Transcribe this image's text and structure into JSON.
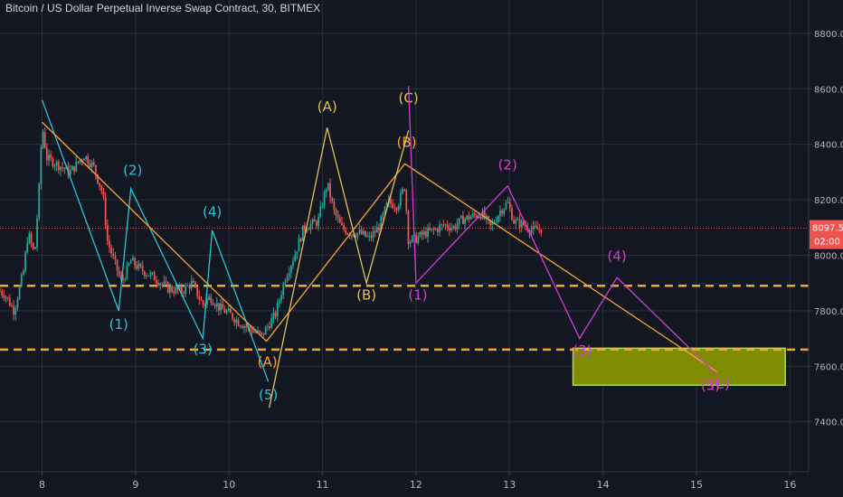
{
  "title": "Bitcoin / US Dollar Perpetual Inverse Swap Contract, 30, BITMEX",
  "colors": {
    "background": "#131722",
    "grid": "#2a2e39",
    "axis_text": "#b2b5be",
    "candle_up": "#26a69a",
    "candle_down": "#ef5350",
    "price_line": "#ef5350",
    "support": "#f5a623",
    "cyan_wave": "#26c6da",
    "orange_wave": "#f7a531",
    "yellow_label": "#e2c15a",
    "magenta_wave": "#d63bd6",
    "target_fill": "#7f8c00",
    "target_border": "#a6e34a"
  },
  "chart_data": {
    "type": "candlestick",
    "x_axis": {
      "ticks": [
        "8",
        "9",
        "10",
        "11",
        "12",
        "13",
        "14",
        "15",
        "16"
      ],
      "range": [
        7.55,
        16.2
      ]
    },
    "y_axis": {
      "ticks": [
        "7400.0",
        "7600.0",
        "7800.0",
        "8000.0",
        "8200.0",
        "8400.0",
        "8600.0",
        "8800.0"
      ],
      "tick_values": [
        7400,
        7600,
        7800,
        8000,
        8200,
        8400,
        8600,
        8800
      ],
      "range": [
        7220,
        8920
      ],
      "position": "right"
    },
    "grid": true,
    "current_price": {
      "value": 8097.5,
      "label": "8097.5",
      "countdown": "02:00"
    },
    "support_levels": [
      7890,
      7660
    ],
    "target_zone": {
      "x": [
        13.68,
        15.95
      ],
      "y": [
        7532,
        7665
      ]
    },
    "price_path": [
      [
        7.55,
        7870
      ],
      [
        7.6,
        7860
      ],
      [
        7.7,
        7800
      ],
      [
        7.8,
        7940
      ],
      [
        7.85,
        8080
      ],
      [
        7.92,
        8000
      ],
      [
        7.97,
        8250
      ],
      [
        8.0,
        8470
      ],
      [
        8.05,
        8350
      ],
      [
        8.15,
        8330
      ],
      [
        8.3,
        8300
      ],
      [
        8.45,
        8360
      ],
      [
        8.55,
        8320
      ],
      [
        8.65,
        8220
      ],
      [
        8.7,
        8050
      ],
      [
        8.85,
        7900
      ],
      [
        8.95,
        7980
      ],
      [
        9.05,
        7950
      ],
      [
        9.2,
        7920
      ],
      [
        9.35,
        7880
      ],
      [
        9.5,
        7870
      ],
      [
        9.6,
        7900
      ],
      [
        9.72,
        7820
      ],
      [
        9.8,
        7850
      ],
      [
        9.9,
        7810
      ],
      [
        10.0,
        7790
      ],
      [
        10.1,
        7760
      ],
      [
        10.2,
        7740
      ],
      [
        10.35,
        7710
      ],
      [
        10.5,
        7790
      ],
      [
        10.6,
        7920
      ],
      [
        10.7,
        8000
      ],
      [
        10.8,
        8100
      ],
      [
        10.95,
        8120
      ],
      [
        11.05,
        8260
      ],
      [
        11.12,
        8160
      ],
      [
        11.2,
        8100
      ],
      [
        11.3,
        8080
      ],
      [
        11.4,
        8080
      ],
      [
        11.5,
        8060
      ],
      [
        11.6,
        8100
      ],
      [
        11.7,
        8190
      ],
      [
        11.8,
        8180
      ],
      [
        11.88,
        8250
      ],
      [
        11.92,
        8050
      ],
      [
        12.0,
        8060
      ],
      [
        12.1,
        8080
      ],
      [
        12.2,
        8090
      ],
      [
        12.3,
        8110
      ],
      [
        12.4,
        8100
      ],
      [
        12.5,
        8130
      ],
      [
        12.6,
        8140
      ],
      [
        12.7,
        8150
      ],
      [
        12.8,
        8100
      ],
      [
        12.9,
        8160
      ],
      [
        12.98,
        8190
      ],
      [
        13.05,
        8120
      ],
      [
        13.15,
        8110
      ],
      [
        13.25,
        8090
      ],
      [
        13.35,
        8097
      ]
    ],
    "waves": [
      {
        "color_key": "cyan_wave",
        "points": [
          [
            8.0,
            8560
          ],
          [
            8.82,
            7800
          ],
          [
            8.95,
            8240
          ],
          [
            9.72,
            7700
          ],
          [
            9.82,
            8090
          ],
          [
            10.42,
            7545
          ]
        ],
        "labels": [
          {
            "text": "(1)",
            "x": 8.82,
            "y": 7735
          },
          {
            "text": "(2)",
            "x": 8.97,
            "y": 8290
          },
          {
            "text": "(3)",
            "x": 9.72,
            "y": 7645
          },
          {
            "text": "(4)",
            "x": 9.82,
            "y": 8140
          },
          {
            "text": "(5)",
            "x": 10.42,
            "y": 7480
          }
        ]
      },
      {
        "color_key": "orange_wave",
        "points": [
          [
            8.0,
            8480
          ],
          [
            10.4,
            7690
          ]
        ],
        "labels": []
      },
      {
        "color_key": "orange_wave",
        "points": [
          [
            10.4,
            7690
          ],
          [
            11.88,
            8330
          ],
          [
            15.22,
            7580
          ]
        ],
        "labels": [
          {
            "text": "(A)",
            "x": 10.41,
            "y": 7600
          },
          {
            "text": "(B)",
            "x": 11.9,
            "y": 8390
          }
        ]
      },
      {
        "color_key": "yellow_label",
        "points": [
          [
            10.43,
            7450
          ],
          [
            11.05,
            8460
          ],
          [
            11.47,
            7900
          ],
          [
            11.92,
            8450
          ]
        ],
        "labels": [
          {
            "text": "(A)",
            "x": 11.05,
            "y": 8520
          },
          {
            "text": "(B)",
            "x": 11.47,
            "y": 7840
          },
          {
            "text": "(C)",
            "x": 11.92,
            "y": 8550
          }
        ]
      },
      {
        "color_key": "magenta_wave",
        "points": [
          [
            11.92,
            8610
          ],
          [
            12.0,
            7900
          ],
          [
            12.98,
            8250
          ],
          [
            13.75,
            7700
          ],
          [
            14.15,
            7920
          ],
          [
            15.2,
            7575
          ]
        ],
        "labels": [
          {
            "text": "(1)",
            "x": 12.02,
            "y": 7840
          },
          {
            "text": "(2)",
            "x": 12.98,
            "y": 8310
          },
          {
            "text": "(3)",
            "x": 13.78,
            "y": 7640
          },
          {
            "text": "(4)",
            "x": 14.15,
            "y": 7980
          },
          {
            "text": "(5)",
            "x": 15.15,
            "y": 7515
          },
          {
            "text": "(C)",
            "x": 15.25,
            "y": 7520
          }
        ]
      }
    ]
  }
}
